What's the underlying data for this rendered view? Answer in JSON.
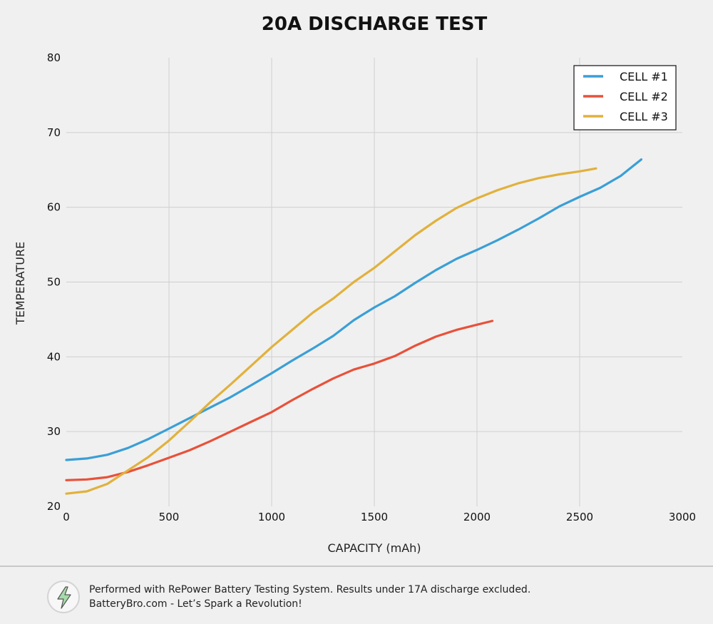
{
  "chart_data": {
    "type": "line",
    "title": "20A DISCHARGE TEST",
    "xlabel": "CAPACITY (mAh)",
    "ylabel": "TEMPERATURE",
    "xlim": [
      0,
      3000
    ],
    "ylim": [
      20,
      80
    ],
    "xticks": [
      0,
      500,
      1000,
      1500,
      2000,
      2500,
      3000
    ],
    "yticks": [
      20,
      30,
      40,
      50,
      60,
      70,
      80
    ],
    "grid": true,
    "legend_position": "top-right",
    "series": [
      {
        "name": "CELL #1",
        "color": "#3a9fd6",
        "x": [
          0,
          100,
          200,
          300,
          400,
          500,
          600,
          700,
          800,
          900,
          1000,
          1100,
          1200,
          1300,
          1400,
          1500,
          1600,
          1700,
          1800,
          1900,
          2000,
          2100,
          2200,
          2300,
          2400,
          2500,
          2600,
          2700,
          2800
        ],
        "y": [
          26.2,
          26.4,
          26.9,
          27.8,
          29.0,
          30.4,
          31.8,
          33.2,
          34.6,
          36.2,
          37.8,
          39.5,
          41.1,
          42.8,
          44.9,
          46.6,
          48.1,
          49.9,
          51.6,
          53.1,
          54.3,
          55.6,
          57.0,
          58.5,
          60.1,
          61.4,
          62.6,
          64.2,
          66.4
        ]
      },
      {
        "name": "CELL #2",
        "color": "#e8513a",
        "x": [
          0,
          100,
          200,
          300,
          400,
          500,
          600,
          700,
          800,
          900,
          1000,
          1100,
          1200,
          1300,
          1400,
          1500,
          1600,
          1700,
          1800,
          1900,
          2000,
          2075
        ],
        "y": [
          23.5,
          23.6,
          23.9,
          24.6,
          25.5,
          26.5,
          27.5,
          28.7,
          30.0,
          31.3,
          32.6,
          34.2,
          35.7,
          37.1,
          38.3,
          39.1,
          40.1,
          41.5,
          42.7,
          43.6,
          44.3,
          44.8
        ]
      },
      {
        "name": "CELL #3",
        "color": "#e1b13c",
        "x": [
          0,
          100,
          200,
          300,
          400,
          500,
          600,
          700,
          800,
          900,
          1000,
          1100,
          1200,
          1300,
          1400,
          1500,
          1600,
          1700,
          1800,
          1900,
          2000,
          2100,
          2200,
          2300,
          2400,
          2500,
          2580
        ],
        "y": [
          21.7,
          22.0,
          23.0,
          24.8,
          26.6,
          28.8,
          31.3,
          33.9,
          36.3,
          38.8,
          41.3,
          43.6,
          45.9,
          47.8,
          50.0,
          51.9,
          54.1,
          56.3,
          58.2,
          59.9,
          61.2,
          62.3,
          63.2,
          63.9,
          64.4,
          64.8,
          65.2
        ]
      }
    ]
  },
  "footer": {
    "line1": "Performed with RePower Battery Testing System. Results under 17A discharge excluded.",
    "line2": "BatteryBro.com - Let’s Spark a Revolution!",
    "logo_icon": "lightning-bolt-icon"
  }
}
